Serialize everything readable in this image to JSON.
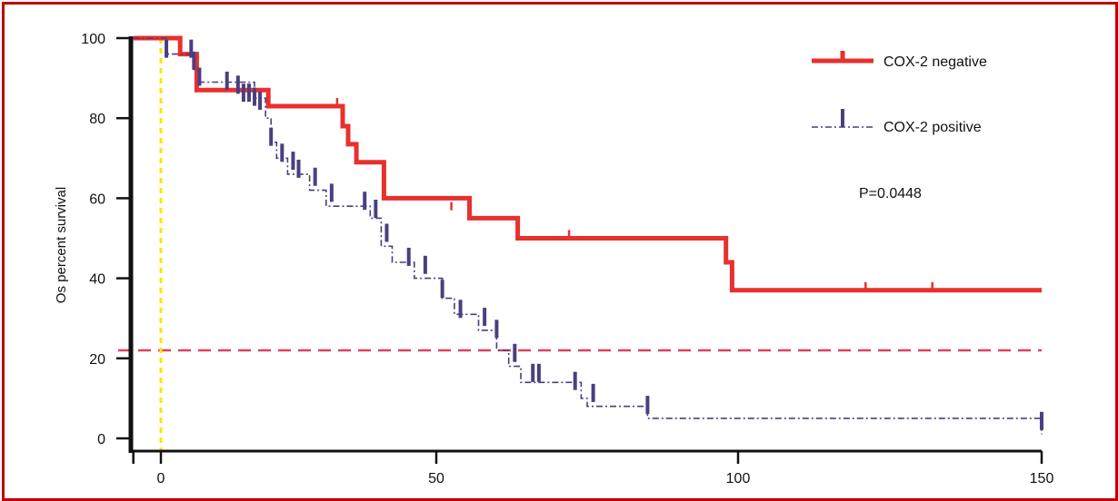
{
  "chart_data": {
    "type": "line",
    "ylabel": "Os percent survival",
    "xlabel": "",
    "title": "",
    "xlim": [
      -5,
      150
    ],
    "ylim": [
      0,
      100
    ],
    "x_ticks": [
      0,
      50,
      100,
      150
    ],
    "y_ticks": [
      0,
      20,
      40,
      60,
      80,
      100
    ],
    "grid": false,
    "legend_position": "top-right",
    "annotation": "P=0.0448",
    "reference_lines": {
      "horizontal_y": 22,
      "vertical_x": 0
    },
    "series": [
      {
        "name": "COX-2 negative",
        "color": "#e8302c",
        "style": "solid",
        "steps": [
          [
            -5,
            100
          ],
          [
            3.5,
            100
          ],
          [
            3.5,
            96
          ],
          [
            6.5,
            96
          ],
          [
            6.5,
            87
          ],
          [
            19.5,
            87
          ],
          [
            19.5,
            83
          ],
          [
            31,
            83
          ],
          [
            33,
            83
          ],
          [
            33,
            78
          ],
          [
            34,
            78
          ],
          [
            34,
            73.5
          ],
          [
            35.5,
            73.5
          ],
          [
            35.5,
            69
          ],
          [
            40.5,
            69
          ],
          [
            40.5,
            60
          ],
          [
            55.5,
            60
          ],
          [
            55.5,
            55
          ],
          [
            63.5,
            55
          ],
          [
            63.5,
            50
          ],
          [
            98,
            50
          ],
          [
            98,
            44
          ],
          [
            99,
            44
          ],
          [
            99,
            37
          ],
          [
            150,
            37
          ]
        ],
        "censored": [
          [
            32,
            83
          ],
          [
            52.5,
            57
          ],
          [
            72,
            50
          ],
          [
            121,
            37
          ],
          [
            132,
            37
          ]
        ]
      },
      {
        "name": "COX-2 positive",
        "color": "#4a3f80",
        "style": "dash-dot",
        "steps": [
          [
            -5,
            100
          ],
          [
            1,
            100
          ],
          [
            1,
            96
          ],
          [
            6,
            96
          ],
          [
            6,
            92
          ],
          [
            7,
            92
          ],
          [
            7,
            89
          ],
          [
            17,
            89
          ],
          [
            17,
            85
          ],
          [
            19,
            85
          ],
          [
            19,
            80
          ],
          [
            20,
            80
          ],
          [
            20,
            74
          ],
          [
            21,
            74
          ],
          [
            21,
            70
          ],
          [
            23,
            70
          ],
          [
            23,
            66
          ],
          [
            27,
            66
          ],
          [
            27,
            62
          ],
          [
            30,
            62
          ],
          [
            30,
            58
          ],
          [
            38,
            58
          ],
          [
            38,
            55
          ],
          [
            40,
            55
          ],
          [
            40,
            48
          ],
          [
            42,
            48
          ],
          [
            42,
            44
          ],
          [
            46,
            44
          ],
          [
            46,
            40
          ],
          [
            51,
            40
          ],
          [
            51,
            35
          ],
          [
            53,
            35
          ],
          [
            53,
            31
          ],
          [
            57,
            31
          ],
          [
            57,
            27
          ],
          [
            60,
            27
          ],
          [
            60,
            22
          ],
          [
            62,
            22
          ],
          [
            62,
            18
          ],
          [
            64,
            18
          ],
          [
            64,
            14
          ],
          [
            74,
            14
          ],
          [
            74,
            10
          ],
          [
            75,
            10
          ],
          [
            75,
            8
          ],
          [
            85,
            8
          ],
          [
            85,
            5
          ],
          [
            150,
            5
          ],
          [
            150,
            1
          ]
        ],
        "censored": [
          [
            1,
            96
          ],
          [
            5.5,
            96
          ],
          [
            6,
            93
          ],
          [
            7,
            89
          ],
          [
            12,
            88
          ],
          [
            14,
            87
          ],
          [
            15,
            85
          ],
          [
            16,
            85
          ],
          [
            17,
            84
          ],
          [
            18,
            83
          ],
          [
            20,
            74
          ],
          [
            22,
            70
          ],
          [
            24,
            68
          ],
          [
            25,
            66
          ],
          [
            28,
            64
          ],
          [
            31,
            60
          ],
          [
            37,
            58
          ],
          [
            39,
            56
          ],
          [
            41,
            50
          ],
          [
            45,
            44
          ],
          [
            48,
            42
          ],
          [
            51,
            36
          ],
          [
            54,
            31
          ],
          [
            58,
            29
          ],
          [
            60,
            26
          ],
          [
            63,
            20
          ],
          [
            66,
            15
          ],
          [
            67,
            15
          ],
          [
            73,
            13
          ],
          [
            76,
            10
          ],
          [
            85,
            7
          ],
          [
            150,
            3
          ]
        ]
      }
    ]
  }
}
